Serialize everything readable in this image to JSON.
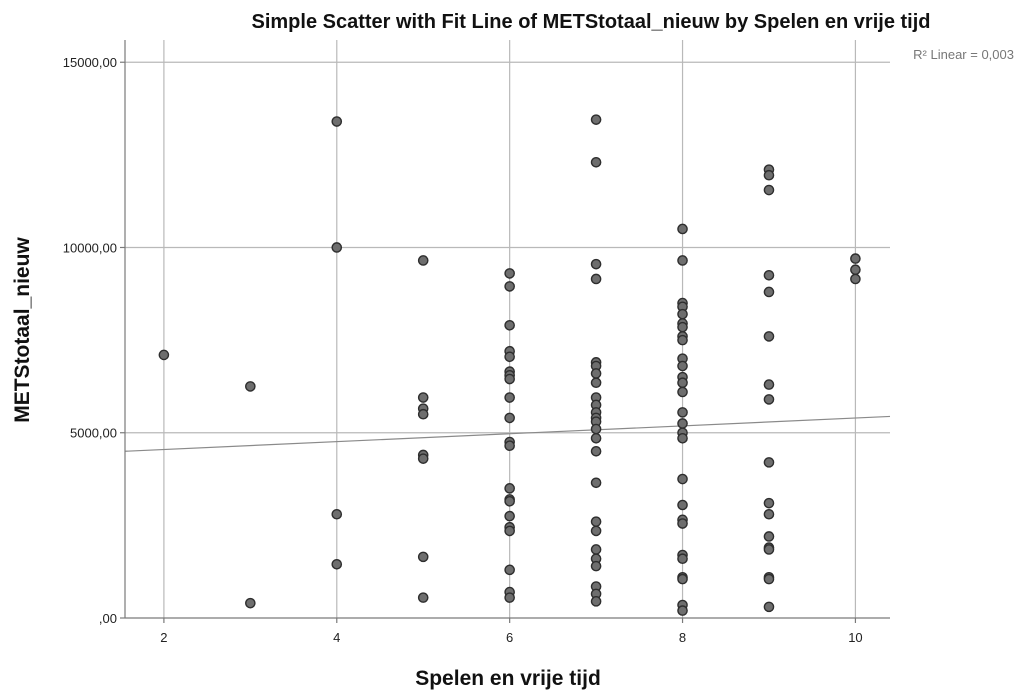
{
  "chart_data": {
    "type": "scatter",
    "title": "Simple Scatter with Fit Line of METStotaal_nieuw by Spelen en vrije tijd",
    "xlabel": "Spelen en vrije tijd",
    "ylabel": "METStotaal_nieuw",
    "xlim": [
      1.55,
      10.4
    ],
    "ylim": [
      0,
      15600
    ],
    "x_ticks": [
      2,
      4,
      6,
      8,
      10
    ],
    "x_tick_labels": [
      "2",
      "4",
      "6",
      "8",
      "10"
    ],
    "y_ticks": [
      0,
      5000,
      10000,
      15000
    ],
    "y_tick_labels": [
      ",00",
      "5000,00",
      "10000,00",
      "15000,00"
    ],
    "grid": true,
    "fit_line": {
      "label": "R² Linear = 0,003",
      "x": [
        1.55,
        10.4
      ],
      "y": [
        4500,
        5440
      ]
    },
    "points": [
      [
        2,
        7100
      ],
      [
        3,
        6250
      ],
      [
        3,
        400
      ],
      [
        4,
        13400
      ],
      [
        4,
        10000
      ],
      [
        4,
        2800
      ],
      [
        4,
        1450
      ],
      [
        5,
        9650
      ],
      [
        5,
        5950
      ],
      [
        5,
        5650
      ],
      [
        5,
        5500
      ],
      [
        5,
        4400
      ],
      [
        5,
        4300
      ],
      [
        5,
        1650
      ],
      [
        5,
        550
      ],
      [
        6,
        9300
      ],
      [
        6,
        8950
      ],
      [
        6,
        7900
      ],
      [
        6,
        7200
      ],
      [
        6,
        7050
      ],
      [
        6,
        6650
      ],
      [
        6,
        6550
      ],
      [
        6,
        6450
      ],
      [
        6,
        5950
      ],
      [
        6,
        5400
      ],
      [
        6,
        4750
      ],
      [
        6,
        4650
      ],
      [
        6,
        3500
      ],
      [
        6,
        3200
      ],
      [
        6,
        3150
      ],
      [
        6,
        2750
      ],
      [
        6,
        2450
      ],
      [
        6,
        2350
      ],
      [
        6,
        1300
      ],
      [
        6,
        700
      ],
      [
        6,
        550
      ],
      [
        7,
        13450
      ],
      [
        7,
        12300
      ],
      [
        7,
        9550
      ],
      [
        7,
        9150
      ],
      [
        7,
        6900
      ],
      [
        7,
        6800
      ],
      [
        7,
        6600
      ],
      [
        7,
        6350
      ],
      [
        7,
        5950
      ],
      [
        7,
        5750
      ],
      [
        7,
        5550
      ],
      [
        7,
        5400
      ],
      [
        7,
        5300
      ],
      [
        7,
        5100
      ],
      [
        7,
        4850
      ],
      [
        7,
        4500
      ],
      [
        7,
        3650
      ],
      [
        7,
        2600
      ],
      [
        7,
        2350
      ],
      [
        7,
        1850
      ],
      [
        7,
        1600
      ],
      [
        7,
        1400
      ],
      [
        7,
        850
      ],
      [
        7,
        650
      ],
      [
        7,
        450
      ],
      [
        8,
        10500
      ],
      [
        8,
        9650
      ],
      [
        8,
        8500
      ],
      [
        8,
        8400
      ],
      [
        8,
        8200
      ],
      [
        8,
        7950
      ],
      [
        8,
        7850
      ],
      [
        8,
        7600
      ],
      [
        8,
        7500
      ],
      [
        8,
        7000
      ],
      [
        8,
        6800
      ],
      [
        8,
        6500
      ],
      [
        8,
        6350
      ],
      [
        8,
        6100
      ],
      [
        8,
        5550
      ],
      [
        8,
        5250
      ],
      [
        8,
        5000
      ],
      [
        8,
        4850
      ],
      [
        8,
        3750
      ],
      [
        8,
        3050
      ],
      [
        8,
        2650
      ],
      [
        8,
        2550
      ],
      [
        8,
        1700
      ],
      [
        8,
        1600
      ],
      [
        8,
        1100
      ],
      [
        8,
        1050
      ],
      [
        8,
        350
      ],
      [
        8,
        200
      ],
      [
        9,
        12100
      ],
      [
        9,
        11950
      ],
      [
        9,
        11550
      ],
      [
        9,
        9250
      ],
      [
        9,
        8800
      ],
      [
        9,
        7600
      ],
      [
        9,
        6300
      ],
      [
        9,
        5900
      ],
      [
        9,
        4200
      ],
      [
        9,
        3100
      ],
      [
        9,
        2800
      ],
      [
        9,
        2200
      ],
      [
        9,
        1900
      ],
      [
        9,
        1850
      ],
      [
        9,
        1100
      ],
      [
        9,
        1050
      ],
      [
        9,
        300
      ],
      [
        10,
        9700
      ],
      [
        10,
        9400
      ],
      [
        10,
        9150
      ]
    ]
  }
}
